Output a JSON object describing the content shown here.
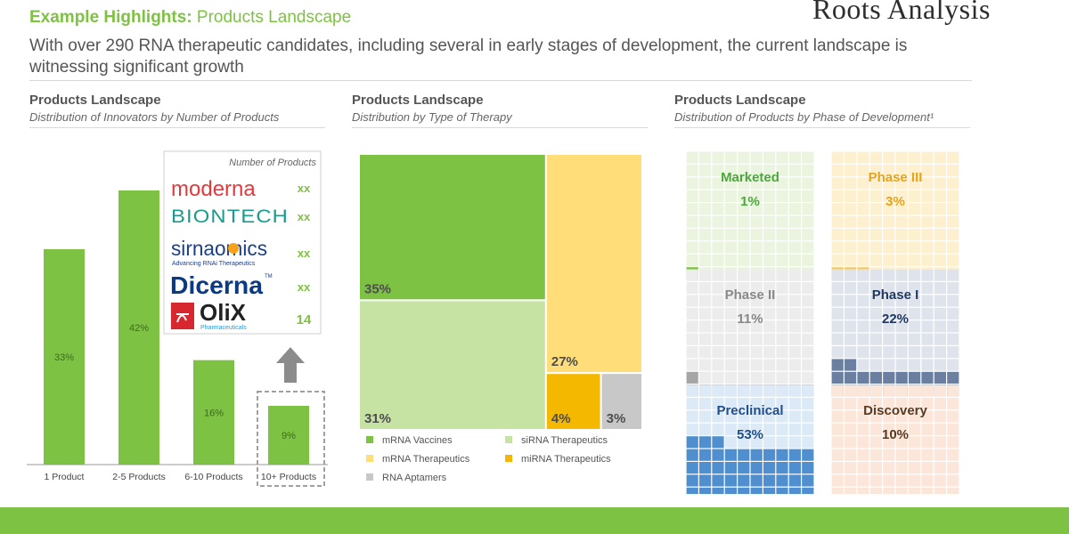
{
  "header": {
    "title_bold": "Example Highlights:",
    "title_rest": "Products Landscape",
    "subtitle": "With over 290 RNA therapeutic candidates, including several in early stages of development, the current landscape is witnessing significant growth",
    "brand": "Roots Analysis"
  },
  "colors": {
    "accent_green": "#7dc242",
    "bar_green": "#7dc242",
    "mrna_vaccines": "#7dc242",
    "sirna": "#c6e3a3",
    "mrna_therapeutics": "#ffde7a",
    "mirna": "#f5b800",
    "rna_aptamers": "#c8c8c8"
  },
  "panels": {
    "left": {
      "title": "Products Landscape",
      "subtitle": "Distribution of Innovators by Number of Products"
    },
    "middle": {
      "title": "Products Landscape",
      "subtitle": "Distribution by Type of Therapy"
    },
    "right": {
      "title": "Products Landscape",
      "subtitle": "Distribution of Products by Phase of Development¹"
    }
  },
  "innovators": {
    "header": "Number of Products",
    "rows": [
      {
        "name": "moderna",
        "value": "xx"
      },
      {
        "name": "BIONTECH",
        "value": "xx"
      },
      {
        "name": "sirnaomics",
        "tagline": "Advancing RNAi Therapeutics",
        "value": "xx"
      },
      {
        "name": "Dicerna",
        "mark": "TM",
        "value": "xx"
      },
      {
        "name": "OliX",
        "tagline": "Pharmaceuticals",
        "value": "14"
      }
    ]
  },
  "chart_data": [
    {
      "type": "bar",
      "title": "Distribution of Innovators by Number of Products",
      "categories": [
        "1 Product",
        "2-5 Products",
        "6-10 Products",
        "10+ Products"
      ],
      "values": [
        33,
        42,
        16,
        9
      ],
      "unit": "%",
      "ylim": [
        0,
        45
      ],
      "highlighted_category": "10+ Products"
    },
    {
      "type": "treemap",
      "title": "Distribution by Type of Therapy",
      "categories": [
        "mRNA Vaccines",
        "siRNA Therapeutics",
        "mRNA Therapeutics",
        "miRNA Therapeutics",
        "RNA Aptamers"
      ],
      "values": [
        35,
        31,
        27,
        4,
        3
      ],
      "unit": "%"
    },
    {
      "type": "waffle",
      "title": "Distribution of Products by Phase of Development",
      "categories": [
        "Marketed",
        "Phase III",
        "Phase II",
        "Phase I",
        "Preclinical",
        "Discovery"
      ],
      "values": [
        1,
        3,
        11,
        22,
        53,
        10
      ],
      "unit": "%",
      "colors": [
        "#7dc242",
        "#f5c96b",
        "#a6a6a6",
        "#6b7fa0",
        "#4f8fd0",
        "#f0a67a"
      ],
      "light_colors": [
        "#eaf4de",
        "#fdf0cf",
        "#ececec",
        "#dfe4ec",
        "#dce9f7",
        "#fbe6d9"
      ],
      "label_colors": [
        "#4aa83a",
        "#e8a317",
        "#888888",
        "#1f3864",
        "#1f4e8c",
        "#5a3a20"
      ]
    }
  ]
}
